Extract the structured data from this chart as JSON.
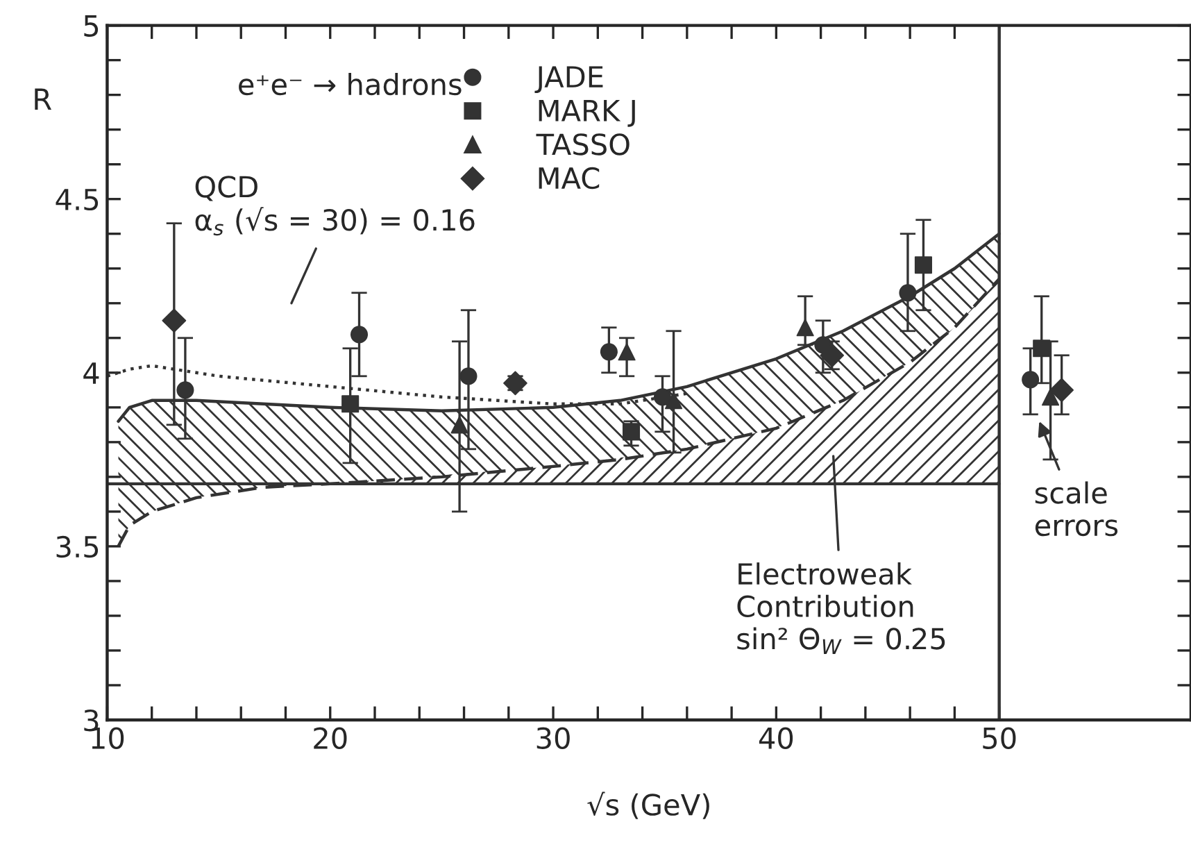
{
  "chart_data": {
    "type": "scatter",
    "xlabel": "√s (GeV)",
    "ylabel": "R",
    "xlim": [
      10,
      58.6
    ],
    "ylim": [
      3,
      5
    ],
    "xticks": [
      10,
      {
        "value": 12,
        "label": null
      },
      {
        "value": 14,
        "label": null
      },
      {
        "value": 16,
        "label": null
      },
      {
        "value": 18,
        "label": null
      },
      20,
      {
        "value": 22,
        "label": null
      },
      {
        "value": 24,
        "label": null
      },
      {
        "value": 26,
        "label": null
      },
      {
        "value": 28,
        "label": null
      },
      30,
      {
        "value": 32,
        "label": null
      },
      {
        "value": 34,
        "label": null
      },
      {
        "value": 36,
        "label": null
      },
      {
        "value": 38,
        "label": null
      },
      40,
      {
        "value": 42,
        "label": null
      },
      {
        "value": 44,
        "label": null
      },
      {
        "value": 46,
        "label": null
      },
      {
        "value": 48,
        "label": null
      },
      50
    ],
    "yticks": [
      3,
      {
        "value": 3.1,
        "label": null
      },
      {
        "value": 3.2,
        "label": null
      },
      {
        "value": 3.3,
        "label": null
      },
      {
        "value": 3.4,
        "label": null
      },
      3.5,
      {
        "value": 3.6,
        "label": null
      },
      {
        "value": 3.7,
        "label": null
      },
      {
        "value": 3.8,
        "label": null
      },
      {
        "value": 3.9,
        "label": null
      },
      4,
      {
        "value": 4.1,
        "label": null
      },
      {
        "value": 4.2,
        "label": null
      },
      {
        "value": 4.3,
        "label": null
      },
      {
        "value": 4.4,
        "label": null
      },
      4.5,
      {
        "value": 4.6,
        "label": null
      },
      {
        "value": 4.7,
        "label": null
      },
      {
        "value": 4.8,
        "label": null
      },
      {
        "value": 4.9,
        "label": null
      },
      5
    ],
    "legend": "top",
    "grid": false,
    "series": [
      {
        "type": "line",
        "color": "#333333",
        "line_style": "solid",
        "x": [
          10.5,
          11,
          12,
          14,
          17,
          20,
          25,
          30,
          33,
          36,
          40,
          43,
          46,
          48,
          50
        ],
        "values": [
          3.86,
          3.9,
          3.92,
          3.92,
          3.91,
          3.9,
          3.89,
          3.9,
          3.92,
          3.96,
          4.04,
          4.12,
          4.22,
          4.3,
          4.4
        ],
        "lower": [
          3.5,
          3.56,
          3.6,
          3.64,
          3.67,
          3.68,
          3.7,
          3.73,
          3.75,
          3.78,
          3.84,
          3.92,
          4.03,
          4.13,
          4.27
        ],
        "upper": [
          3.86,
          3.9,
          3.92,
          3.92,
          3.91,
          3.9,
          3.89,
          3.9,
          3.92,
          3.96,
          4.04,
          4.12,
          4.22,
          4.3,
          4.4
        ]
      },
      {
        "type": "line",
        "color": "#333333",
        "line_style": "dashed",
        "x": [
          10.5,
          11,
          12,
          14,
          17,
          20,
          25,
          30,
          33,
          36,
          40,
          43,
          46,
          48,
          50
        ],
        "values": [
          3.5,
          3.56,
          3.6,
          3.64,
          3.67,
          3.68,
          3.7,
          3.73,
          3.75,
          3.78,
          3.84,
          3.92,
          4.03,
          4.13,
          4.27
        ]
      },
      {
        "type": "line",
        "color": "#333333",
        "line_style": "solid",
        "x": [
          10,
          20,
          30,
          36,
          40,
          43,
          46,
          48,
          50
        ],
        "values": [
          3.68,
          3.68,
          3.68,
          3.68,
          3.68,
          3.68,
          3.68,
          3.68,
          3.68
        ],
        "lower": [
          3.68,
          3.68,
          3.68,
          3.68,
          3.68,
          3.68,
          3.68,
          3.68,
          3.68
        ],
        "upper": [
          3.68,
          3.68,
          3.73,
          3.78,
          3.84,
          3.92,
          4.03,
          4.13,
          4.27
        ]
      },
      {
        "type": "line",
        "color": "#333333",
        "line_style": "dotted",
        "x": [
          10,
          11,
          12,
          15,
          20,
          25,
          30,
          33,
          36
        ],
        "values": [
          3.99,
          4.01,
          4.02,
          3.99,
          3.96,
          3.93,
          3.91,
          3.91,
          3.94
        ]
      },
      {
        "name": "JADE",
        "marker": "circle",
        "color": "#333333",
        "x": [
          13.5,
          21.3,
          26.2,
          32.5,
          34.9,
          42.1,
          45.9,
          51.4
        ],
        "values": [
          3.95,
          4.11,
          3.99,
          4.06,
          3.93,
          4.08,
          4.23,
          3.98
        ],
        "errors": [
          [
            3.81,
            4.1
          ],
          [
            3.99,
            4.23
          ],
          [
            3.78,
            4.18
          ],
          [
            4.0,
            4.13
          ],
          [
            3.83,
            3.99
          ],
          [
            4.0,
            4.15
          ],
          [
            4.12,
            4.4
          ],
          [
            3.88,
            4.07
          ]
        ]
      },
      {
        "name": "MARK J",
        "marker": "square",
        "color": "#333333",
        "x": [
          20.9,
          33.5,
          46.6,
          51.9
        ],
        "values": [
          3.91,
          3.83,
          4.31,
          4.07
        ],
        "errors": [
          [
            3.74,
            4.07
          ],
          [
            3.79,
            3.86
          ],
          [
            4.18,
            4.44
          ],
          [
            3.97,
            4.22
          ]
        ]
      },
      {
        "name": "TASSO",
        "marker": "triangle",
        "color": "#333333",
        "x": [
          25.8,
          33.3,
          35.4,
          41.3,
          52.3
        ],
        "values": [
          3.85,
          4.06,
          3.92,
          4.13,
          3.93
        ],
        "errors": [
          [
            3.6,
            4.09
          ],
          [
            3.99,
            4.1
          ],
          [
            3.77,
            4.12
          ],
          [
            4.08,
            4.22
          ],
          [
            3.75,
            4.09
          ]
        ]
      },
      {
        "name": "MAC",
        "marker": "diamond",
        "color": "#333333",
        "x": [
          13.0,
          28.3,
          42.5,
          52.8
        ],
        "values": [
          4.15,
          3.97,
          4.05,
          3.95
        ],
        "errors": [
          [
            3.85,
            4.43
          ],
          [
            3.95,
            3.99
          ],
          [
            4.01,
            4.09
          ],
          [
            3.88,
            4.05
          ]
        ]
      }
    ],
    "ref_lines": [
      {
        "axis": "x",
        "value": 50,
        "color": "#333333"
      }
    ],
    "annotations": [
      "e⁺e⁻ → hadrons",
      "QCD\nα$_{s}$ (√s = 30) = 0.16",
      "Electroweak\nContribution\nsin² Θ$_{W}$ = 0.25",
      "scale\nerrors"
    ]
  }
}
